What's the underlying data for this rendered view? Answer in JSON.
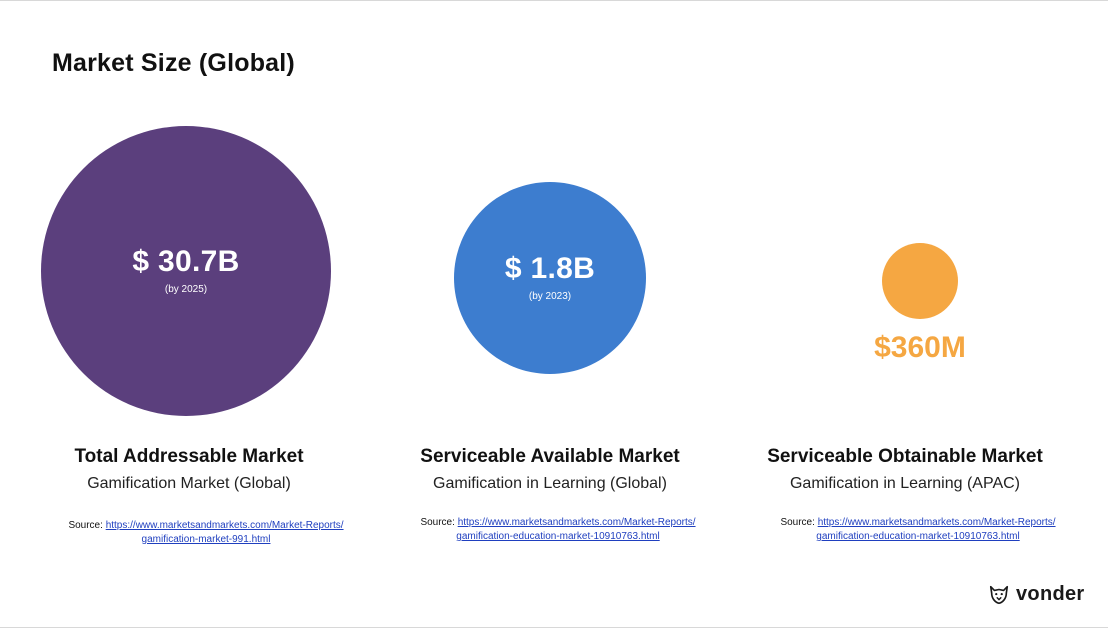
{
  "title": "Market Size (Global)",
  "colors": {
    "tam": "#5b3f7d",
    "sam": "#3d7dcf",
    "som": "#f5a742"
  },
  "tam": {
    "value": "$ 30.7B",
    "note": "(by 2025)",
    "heading": "Total Addressable Market",
    "description": "Gamification Market (Global)",
    "source_label": "Source:",
    "source_link_1": "https://www.marketsandmarkets.com/Market-Reports/",
    "source_link_2": "gamification-market-991.html"
  },
  "sam": {
    "value": "$ 1.8B",
    "note": "(by 2023)",
    "heading": "Serviceable Available Market",
    "description": "Gamification in Learning (Global)",
    "source_label": "Source:",
    "source_link_1": "https://www.marketsandmarkets.com/Market-Reports/",
    "source_link_2": "gamification-education-market-10910763.html"
  },
  "som": {
    "value": "$360M",
    "heading": "Serviceable Obtainable Market",
    "description": "Gamification in Learning (APAC)",
    "source_label": "Source:",
    "source_link_1": "https://www.marketsandmarkets.com/Market-Reports/",
    "source_link_2": "gamification-education-market-10910763.html"
  },
  "logo": {
    "icon": "vonder-mascot-icon",
    "text": "vonder"
  }
}
